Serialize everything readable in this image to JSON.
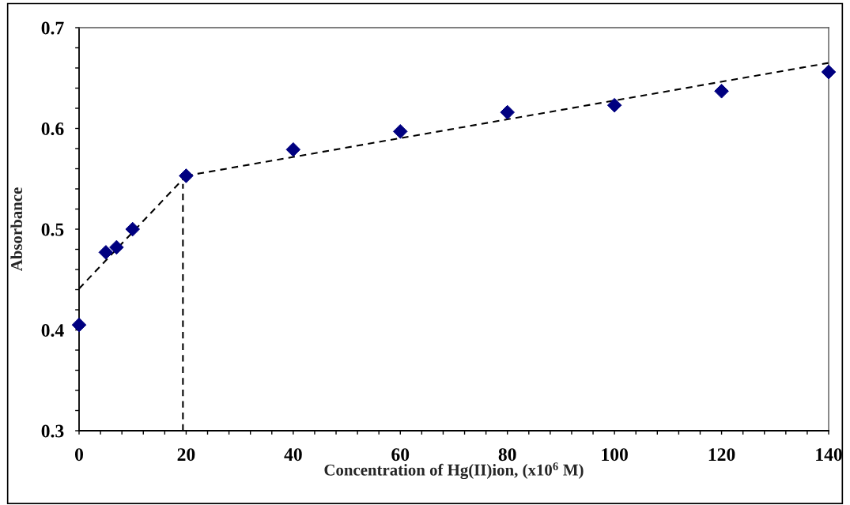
{
  "chart_data": {
    "type": "scatter",
    "xlabel": "Concentration of Hg(II)ion, (x10$^{6}$ M)",
    "ylabel": "Absorbance",
    "x": [
      0,
      5,
      7,
      10,
      20,
      40,
      60,
      80,
      100,
      120,
      140
    ],
    "series": [
      {
        "color": "#000080",
        "marker": "diamond",
        "values": [
          0.405,
          0.477,
          0.482,
          0.5,
          0.553,
          0.579,
          0.597,
          0.616,
          0.623,
          0.637,
          0.656
        ]
      },
      {
        "type": "line",
        "color": "#000000",
        "line_style": "dashed",
        "marker": "none",
        "x": [
          0,
          20
        ],
        "values": [
          0.441,
          0.553
        ]
      },
      {
        "type": "line",
        "color": "#000000",
        "line_style": "dashed",
        "marker": "none",
        "x": [
          20,
          140
        ],
        "values": [
          0.553,
          0.665
        ]
      },
      {
        "type": "line",
        "color": "#000000",
        "line_style": "dashed",
        "marker": "none",
        "x": [
          19.4,
          19.4
        ],
        "values": [
          0.3,
          0.545
        ]
      }
    ],
    "xlim": [
      0,
      140
    ],
    "ylim": [
      0.3,
      0.7
    ],
    "xticks": [
      0,
      {
        "value": 4,
        "label": null
      },
      {
        "value": 8,
        "label": null
      },
      {
        "value": 12,
        "label": null
      },
      {
        "value": 16,
        "label": null
      },
      20,
      {
        "value": 24,
        "label": null
      },
      {
        "value": 28,
        "label": null
      },
      {
        "value": 32,
        "label": null
      },
      {
        "value": 36,
        "label": null
      },
      40,
      {
        "value": 44,
        "label": null
      },
      {
        "value": 48,
        "label": null
      },
      {
        "value": 52,
        "label": null
      },
      {
        "value": 56,
        "label": null
      },
      60,
      {
        "value": 64,
        "label": null
      },
      {
        "value": 68,
        "label": null
      },
      {
        "value": 72,
        "label": null
      },
      {
        "value": 76,
        "label": null
      },
      80,
      {
        "value": 84,
        "label": null
      },
      {
        "value": 88,
        "label": null
      },
      {
        "value": 92,
        "label": null
      },
      {
        "value": 96,
        "label": null
      },
      100,
      {
        "value": 104,
        "label": null
      },
      {
        "value": 108,
        "label": null
      },
      {
        "value": 112,
        "label": null
      },
      {
        "value": 116,
        "label": null
      },
      120,
      {
        "value": 124,
        "label": null
      },
      {
        "value": 128,
        "label": null
      },
      {
        "value": 132,
        "label": null
      },
      {
        "value": 136,
        "label": null
      },
      140
    ],
    "yticks": [
      0.3,
      {
        "value": 0.32,
        "label": null
      },
      {
        "value": 0.34,
        "label": null
      },
      {
        "value": 0.36,
        "label": null
      },
      {
        "value": 0.38,
        "label": null
      },
      0.4,
      {
        "value": 0.42,
        "label": null
      },
      {
        "value": 0.44,
        "label": null
      },
      {
        "value": 0.46,
        "label": null
      },
      {
        "value": 0.48,
        "label": null
      },
      0.5,
      {
        "value": 0.52,
        "label": null
      },
      {
        "value": 0.54,
        "label": null
      },
      {
        "value": 0.56,
        "label": null
      },
      {
        "value": 0.58,
        "label": null
      },
      0.6,
      {
        "value": 0.62,
        "label": null
      },
      {
        "value": 0.64,
        "label": null
      },
      {
        "value": 0.66,
        "label": null
      },
      {
        "value": 0.68,
        "label": null
      },
      0.7
    ],
    "grid": false,
    "legend": false
  }
}
